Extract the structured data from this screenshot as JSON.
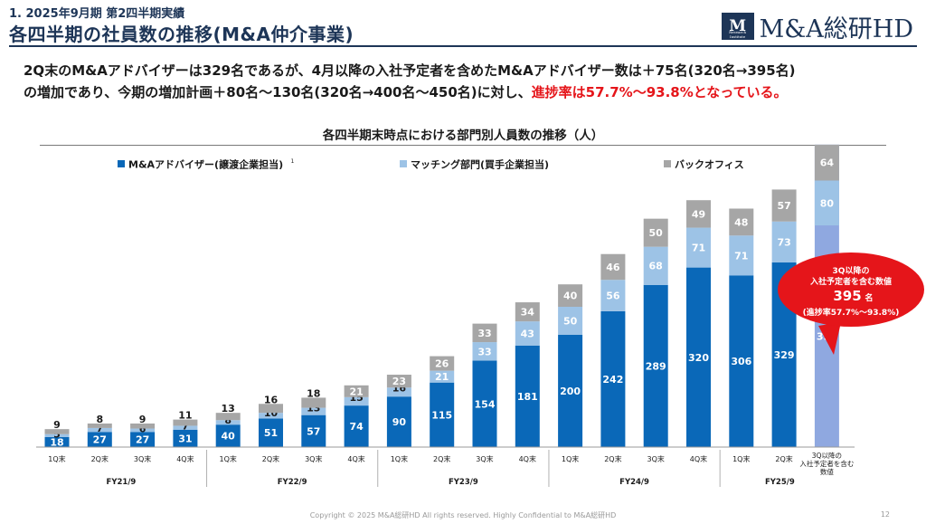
{
  "header": {
    "section_label": "1. 2025年9月期 第2四半期実績",
    "title": "各四半期の社員数の推移(M&A仲介事業)",
    "logo_text": "M&A総研HD",
    "logo_mark_letter": "M",
    "logo_mark_sub": "Research Institute"
  },
  "summary": {
    "line1": "2Q末のM&Aアドバイザーは329名であるが、4月以降の入社予定者を含めたM&Aアドバイザー数は＋75名(320名→395名)",
    "line2_plain": "の増加であり、今期の増加計画＋80名～130名(320名→400名～450名)に対し、",
    "line2_highlight": "進捗率は57.7%～93.8%となっている。"
  },
  "chart_data": {
    "type": "bar",
    "stacked": true,
    "title": "各四半期末時点における部門別人員数の推移（人）",
    "legend_position": "top",
    "categories": [
      "1Q末",
      "2Q末",
      "3Q末",
      "4Q末",
      "1Q末",
      "2Q末",
      "3Q末",
      "4Q末",
      "1Q末",
      "2Q末",
      "3Q末",
      "4Q末",
      "1Q末",
      "2Q末",
      "3Q末",
      "4Q末",
      "1Q末",
      "2Q末",
      "3Q以降の入社予定者を含む数値"
    ],
    "fiscal_years": [
      {
        "label": "FY21/9",
        "span": 4
      },
      {
        "label": "FY22/9",
        "span": 4
      },
      {
        "label": "FY23/9",
        "span": 4
      },
      {
        "label": "FY24/9",
        "span": 4
      },
      {
        "label": "FY25/9",
        "span": 3
      }
    ],
    "series": [
      {
        "name": "M&Aアドバイザー(譲渡企業担当)",
        "footnote": "1",
        "color": "#0a68b8",
        "values": [
          18,
          27,
          27,
          31,
          40,
          51,
          57,
          74,
          90,
          115,
          154,
          181,
          200,
          242,
          289,
          320,
          306,
          329,
          395
        ]
      },
      {
        "name": "マッチング部門(買手企業担当)",
        "color": "#9dc3e6",
        "values": [
          5,
          7,
          6,
          7,
          8,
          10,
          13,
          15,
          16,
          21,
          33,
          43,
          50,
          56,
          68,
          71,
          71,
          73,
          80
        ]
      },
      {
        "name": "バックオフィス",
        "color": "#a6a6a6",
        "values": [
          9,
          8,
          9,
          11,
          13,
          16,
          18,
          21,
          23,
          26,
          33,
          34,
          40,
          46,
          50,
          49,
          48,
          57,
          64
        ]
      }
    ],
    "highlight_column_color": "#8fa8e0",
    "ylim": [
      0,
      560
    ]
  },
  "callout": {
    "line1": "3Q以降の",
    "line2": "入社予定者を含む数値",
    "value": "395",
    "unit": "名",
    "line3": "(進捗率57.7%～93.8%)"
  },
  "footer": {
    "copyright": "Copyright © 2025 M&A総研HD All rights reserved. Highly Confidential to M&A総研HD",
    "page_number": "12"
  }
}
